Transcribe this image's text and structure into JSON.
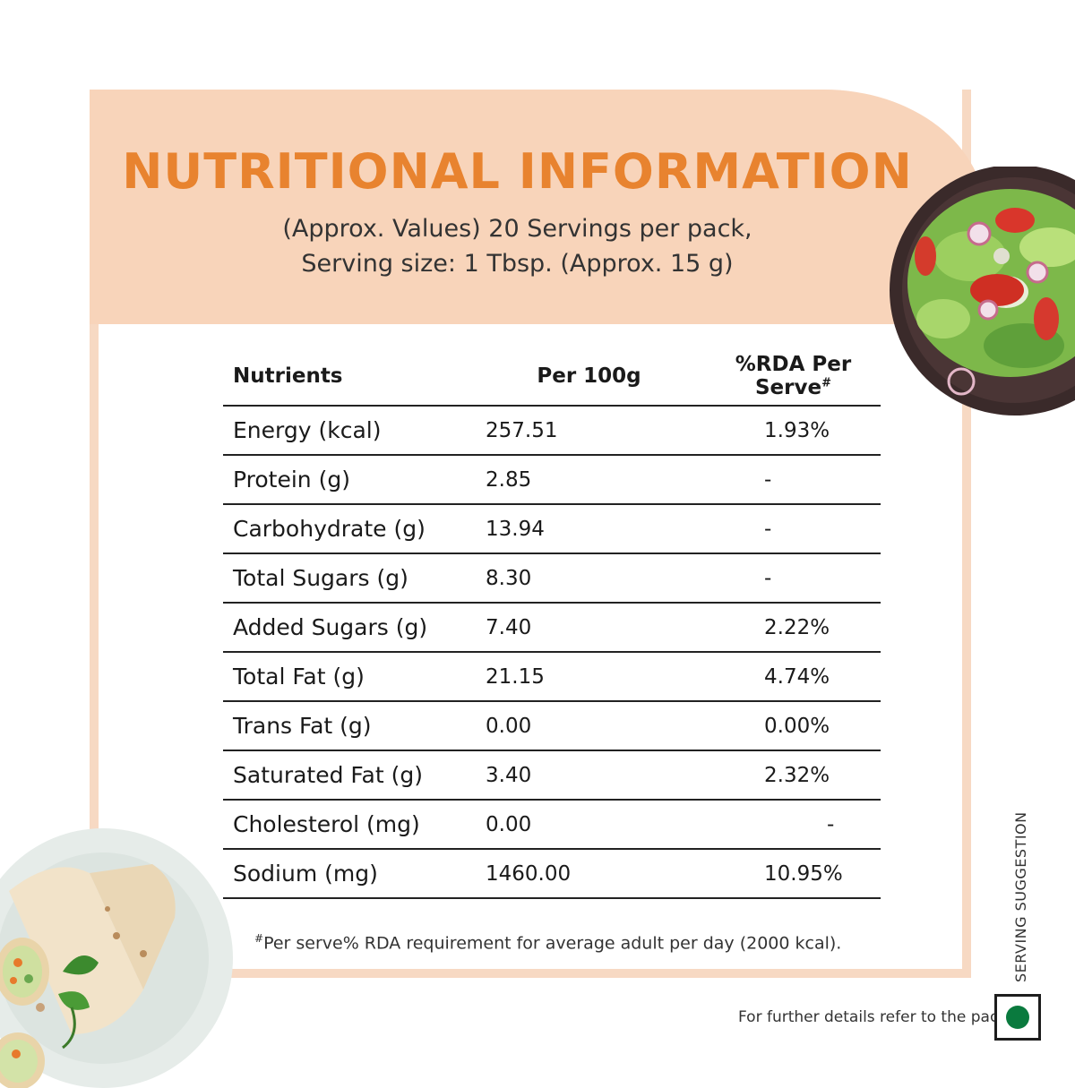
{
  "header": {
    "title": "NUTRITIONAL INFORMATION",
    "subtitle_line1": "(Approx. Values) 20 Servings per pack,",
    "subtitle_line2": "Serving size: 1 Tbsp. (Approx. 15 g)"
  },
  "table": {
    "headers": {
      "nutrients": "Nutrients",
      "per100g": "Per 100g",
      "rda": "%RDA Per Serve",
      "rda_mark": "#"
    },
    "rows": [
      {
        "name": "Energy (kcal)",
        "per100g": "257.51",
        "rda": "1.93%"
      },
      {
        "name": "Protein (g)",
        "per100g": "2.85",
        "rda": "-"
      },
      {
        "name": "Carbohydrate (g)",
        "per100g": "13.94",
        "rda": "-"
      },
      {
        "name": "Total Sugars (g)",
        "per100g": "8.30",
        "rda": "-"
      },
      {
        "name": "Added Sugars (g)",
        "per100g": "7.40",
        "rda": "2.22%"
      },
      {
        "name": "Total Fat (g)",
        "per100g": "21.15",
        "rda": "4.74%"
      },
      {
        "name": "Trans Fat (g)",
        "per100g": "0.00",
        "rda": "0.00%"
      },
      {
        "name": "Saturated Fat (g)",
        "per100g": "3.40",
        "rda": "2.32%"
      },
      {
        "name": "Cholesterol (mg)",
        "per100g": "0.00",
        "rda": "-"
      },
      {
        "name": "Sodium (mg)",
        "per100g": "1460.00",
        "rda": "10.95%"
      }
    ]
  },
  "footnote": {
    "mark": "#",
    "text": "Per serve% RDA requirement for average adult per day (2000 kcal)."
  },
  "serving_label": "SERVING SUGGESTION",
  "further_details": "For further details refer to the pack.",
  "colors": {
    "title": "#e8832f",
    "header_bg": "#f8d4ba",
    "frame": "#f7d9c3",
    "veg_dot": "#0a7a3e"
  }
}
